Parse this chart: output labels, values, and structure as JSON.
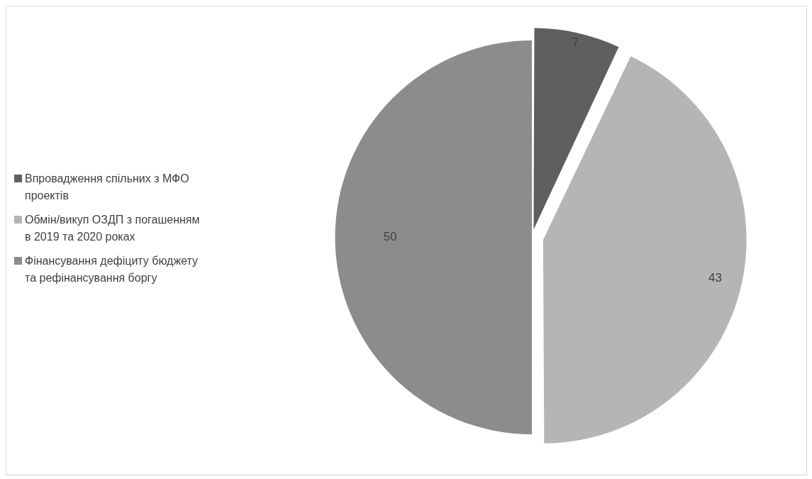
{
  "chart_data": {
    "type": "pie",
    "categories": [
      "Впровадження спільних з МФО проектів",
      "Обмін/викуп ОЗДП з погашенням в 2019 та 2020 роках",
      "Фінансування дефіциту бюджету та рефінансування боргу"
    ],
    "values": [
      7,
      43,
      50
    ],
    "colors": [
      "#5f5f5f",
      "#b5b5b5",
      "#8c8c8c"
    ],
    "legend": "left",
    "data_labels": true
  }
}
